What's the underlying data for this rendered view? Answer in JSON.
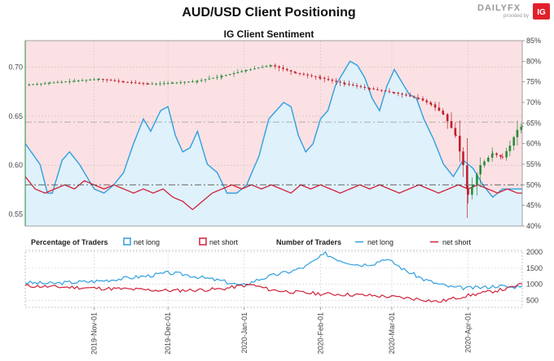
{
  "header": {
    "title": "AUD/USD Client Positioning",
    "logo_text": "DAILYFX",
    "logo_tagline": "provided by",
    "logo_badge": "IG"
  },
  "colors": {
    "net_long": "#2f9fe0",
    "net_short": "#d0213a",
    "up_candle": "#2a8a3a",
    "down_candle": "#c0202e",
    "long_fill": "#dff1fb",
    "short_bg": "#fbe1e3"
  },
  "chart_data": [
    {
      "type": "line",
      "title": "IG Client Sentiment",
      "left_axis_ticks": [
        "0.55",
        "0.60",
        "0.65",
        "0.70"
      ],
      "left_ylim": [
        0.538,
        0.727
      ],
      "right_axis_ticks": [
        "40%",
        "45%",
        "50%",
        "55%",
        "60%",
        "65%",
        "70%",
        "75%",
        "80%",
        "85%"
      ],
      "right_ylim": [
        40,
        85
      ],
      "reference_levels": {
        "net_long_pct_baseline": 50,
        "price_level": 0.644
      },
      "series": [
        {
          "name": "net long",
          "unit": "percent",
          "anchors": [
            [
              0,
              60
            ],
            [
              6,
              55
            ],
            [
              9,
              48
            ],
            [
              11,
              48
            ],
            [
              15,
              56
            ],
            [
              18,
              58
            ],
            [
              22,
              55
            ],
            [
              25,
              52
            ],
            [
              28,
              49
            ],
            [
              32,
              48
            ],
            [
              36,
              50
            ],
            [
              40,
              53
            ],
            [
              44,
              60
            ],
            [
              48,
              66
            ],
            [
              51,
              63
            ],
            [
              55,
              68
            ],
            [
              58,
              69
            ],
            [
              61,
              62
            ],
            [
              64,
              58
            ],
            [
              67,
              59
            ],
            [
              70,
              63
            ],
            [
              74,
              55
            ],
            [
              78,
              53
            ],
            [
              82,
              48
            ],
            [
              86,
              48
            ],
            [
              90,
              50
            ],
            [
              95,
              57
            ],
            [
              99,
              66
            ],
            [
              102,
              68
            ],
            [
              105,
              70
            ],
            [
              108,
              69
            ],
            [
              111,
              62
            ],
            [
              114,
              58
            ],
            [
              117,
              60
            ],
            [
              120,
              66
            ],
            [
              123,
              68
            ],
            [
              126,
              74
            ],
            [
              129,
              77
            ],
            [
              132,
              80
            ],
            [
              135,
              79
            ],
            [
              138,
              76
            ],
            [
              141,
              71
            ],
            [
              144,
              68
            ],
            [
              147,
              74
            ],
            [
              150,
              78
            ],
            [
              153,
              75
            ],
            [
              156,
              72
            ],
            [
              159,
              71
            ],
            [
              162,
              66
            ],
            [
              166,
              61
            ],
            [
              170,
              55
            ],
            [
              174,
              52
            ],
            [
              178,
              56
            ],
            [
              182,
              54
            ],
            [
              186,
              50
            ],
            [
              190,
              47
            ],
            [
              194,
              49
            ],
            [
              198,
              49
            ],
            [
              202,
              49
            ]
          ]
        },
        {
          "name": "net short",
          "unit": "percent",
          "anchors": [
            [
              0,
              52
            ],
            [
              4,
              49
            ],
            [
              8,
              48
            ],
            [
              12,
              49
            ],
            [
              16,
              50
            ],
            [
              20,
              49
            ],
            [
              24,
              51
            ],
            [
              28,
              50
            ],
            [
              32,
              49
            ],
            [
              36,
              50
            ],
            [
              40,
              49
            ],
            [
              44,
              48
            ],
            [
              48,
              49
            ],
            [
              52,
              48
            ],
            [
              56,
              49
            ],
            [
              60,
              47
            ],
            [
              64,
              46
            ],
            [
              68,
              44
            ],
            [
              72,
              46
            ],
            [
              76,
              48
            ],
            [
              80,
              49
            ],
            [
              84,
              50
            ],
            [
              88,
              49
            ],
            [
              92,
              50
            ],
            [
              96,
              49
            ],
            [
              100,
              50
            ],
            [
              104,
              49
            ],
            [
              108,
              48
            ],
            [
              112,
              50
            ],
            [
              116,
              49
            ],
            [
              120,
              50
            ],
            [
              124,
              49
            ],
            [
              128,
              48
            ],
            [
              132,
              49
            ],
            [
              136,
              50
            ],
            [
              140,
              49
            ],
            [
              144,
              50
            ],
            [
              148,
              49
            ],
            [
              152,
              48
            ],
            [
              156,
              49
            ],
            [
              160,
              50
            ],
            [
              164,
              49
            ],
            [
              168,
              48
            ],
            [
              172,
              49
            ],
            [
              176,
              50
            ],
            [
              180,
              49
            ],
            [
              184,
              50
            ],
            [
              188,
              49
            ],
            [
              192,
              48
            ],
            [
              196,
              49
            ],
            [
              200,
              48
            ],
            [
              202,
              48
            ]
          ]
        },
        {
          "name": "AUD/USD price",
          "unit": "price",
          "anchors": [
            [
              0,
              0.682
            ],
            [
              10,
              0.684
            ],
            [
              20,
              0.686
            ],
            [
              30,
              0.688
            ],
            [
              40,
              0.685
            ],
            [
              50,
              0.683
            ],
            [
              60,
              0.684
            ],
            [
              70,
              0.686
            ],
            [
              80,
              0.691
            ],
            [
              90,
              0.697
            ],
            [
              100,
              0.702
            ],
            [
              110,
              0.694
            ],
            [
              120,
              0.689
            ],
            [
              130,
              0.683
            ],
            [
              140,
              0.678
            ],
            [
              150,
              0.674
            ],
            [
              160,
              0.668
            ],
            [
              165,
              0.662
            ],
            [
              170,
              0.652
            ],
            [
              175,
              0.63
            ],
            [
              178,
              0.6
            ],
            [
              180,
              0.57
            ],
            [
              182,
              0.58
            ],
            [
              185,
              0.6
            ],
            [
              190,
              0.612
            ],
            [
              194,
              0.608
            ],
            [
              197,
              0.62
            ],
            [
              200,
              0.636
            ],
            [
              202,
              0.64
            ]
          ]
        }
      ]
    },
    {
      "type": "line",
      "title": "",
      "x_tick_labels": [
        "2019-Nov-01",
        "2019-Dec-01",
        "2020-Jan-01",
        "2020-Feb-01",
        "2020-Mar-01",
        "2020-Apr-01"
      ],
      "x_tick_days": [
        28,
        58,
        89,
        120,
        149,
        180
      ],
      "x_range_days": [
        0,
        202
      ],
      "right_axis_ticks": [
        "500",
        "1000",
        "1500",
        "2000"
      ],
      "ylim": [
        280,
        2050
      ],
      "legend": {
        "percentage_title": "Percentage of Traders",
        "number_title": "Number of Traders",
        "net_long": "net long",
        "net_short": "net short"
      },
      "series": [
        {
          "name": "net long",
          "anchors": [
            [
              0,
              1050
            ],
            [
              10,
              1020
            ],
            [
              20,
              1060
            ],
            [
              30,
              1100
            ],
            [
              40,
              1180
            ],
            [
              50,
              1260
            ],
            [
              58,
              1350
            ],
            [
              65,
              1300
            ],
            [
              72,
              1200
            ],
            [
              80,
              1100
            ],
            [
              88,
              950
            ],
            [
              95,
              1150
            ],
            [
              102,
              1300
            ],
            [
              108,
              1400
            ],
            [
              114,
              1550
            ],
            [
              118,
              1750
            ],
            [
              122,
              1950
            ],
            [
              126,
              1800
            ],
            [
              130,
              1700
            ],
            [
              136,
              1600
            ],
            [
              142,
              1650
            ],
            [
              146,
              1800
            ],
            [
              150,
              1650
            ],
            [
              154,
              1450
            ],
            [
              158,
              1300
            ],
            [
              162,
              1150
            ],
            [
              168,
              1000
            ],
            [
              174,
              900
            ],
            [
              180,
              880
            ],
            [
              186,
              900
            ],
            [
              192,
              950
            ],
            [
              198,
              900
            ],
            [
              202,
              980
            ]
          ]
        },
        {
          "name": "net short",
          "anchors": [
            [
              0,
              950
            ],
            [
              10,
              920
            ],
            [
              20,
              900
            ],
            [
              30,
              870
            ],
            [
              40,
              850
            ],
            [
              50,
              820
            ],
            [
              60,
              800
            ],
            [
              70,
              820
            ],
            [
              80,
              850
            ],
            [
              88,
              950
            ],
            [
              92,
              980
            ],
            [
              96,
              900
            ],
            [
              100,
              820
            ],
            [
              110,
              750
            ],
            [
              120,
              700
            ],
            [
              130,
              680
            ],
            [
              140,
              650
            ],
            [
              150,
              600
            ],
            [
              156,
              560
            ],
            [
              162,
              520
            ],
            [
              168,
              450
            ],
            [
              172,
              520
            ],
            [
              178,
              620
            ],
            [
              184,
              700
            ],
            [
              190,
              780
            ],
            [
              196,
              860
            ],
            [
              202,
              1000
            ]
          ]
        }
      ]
    }
  ]
}
